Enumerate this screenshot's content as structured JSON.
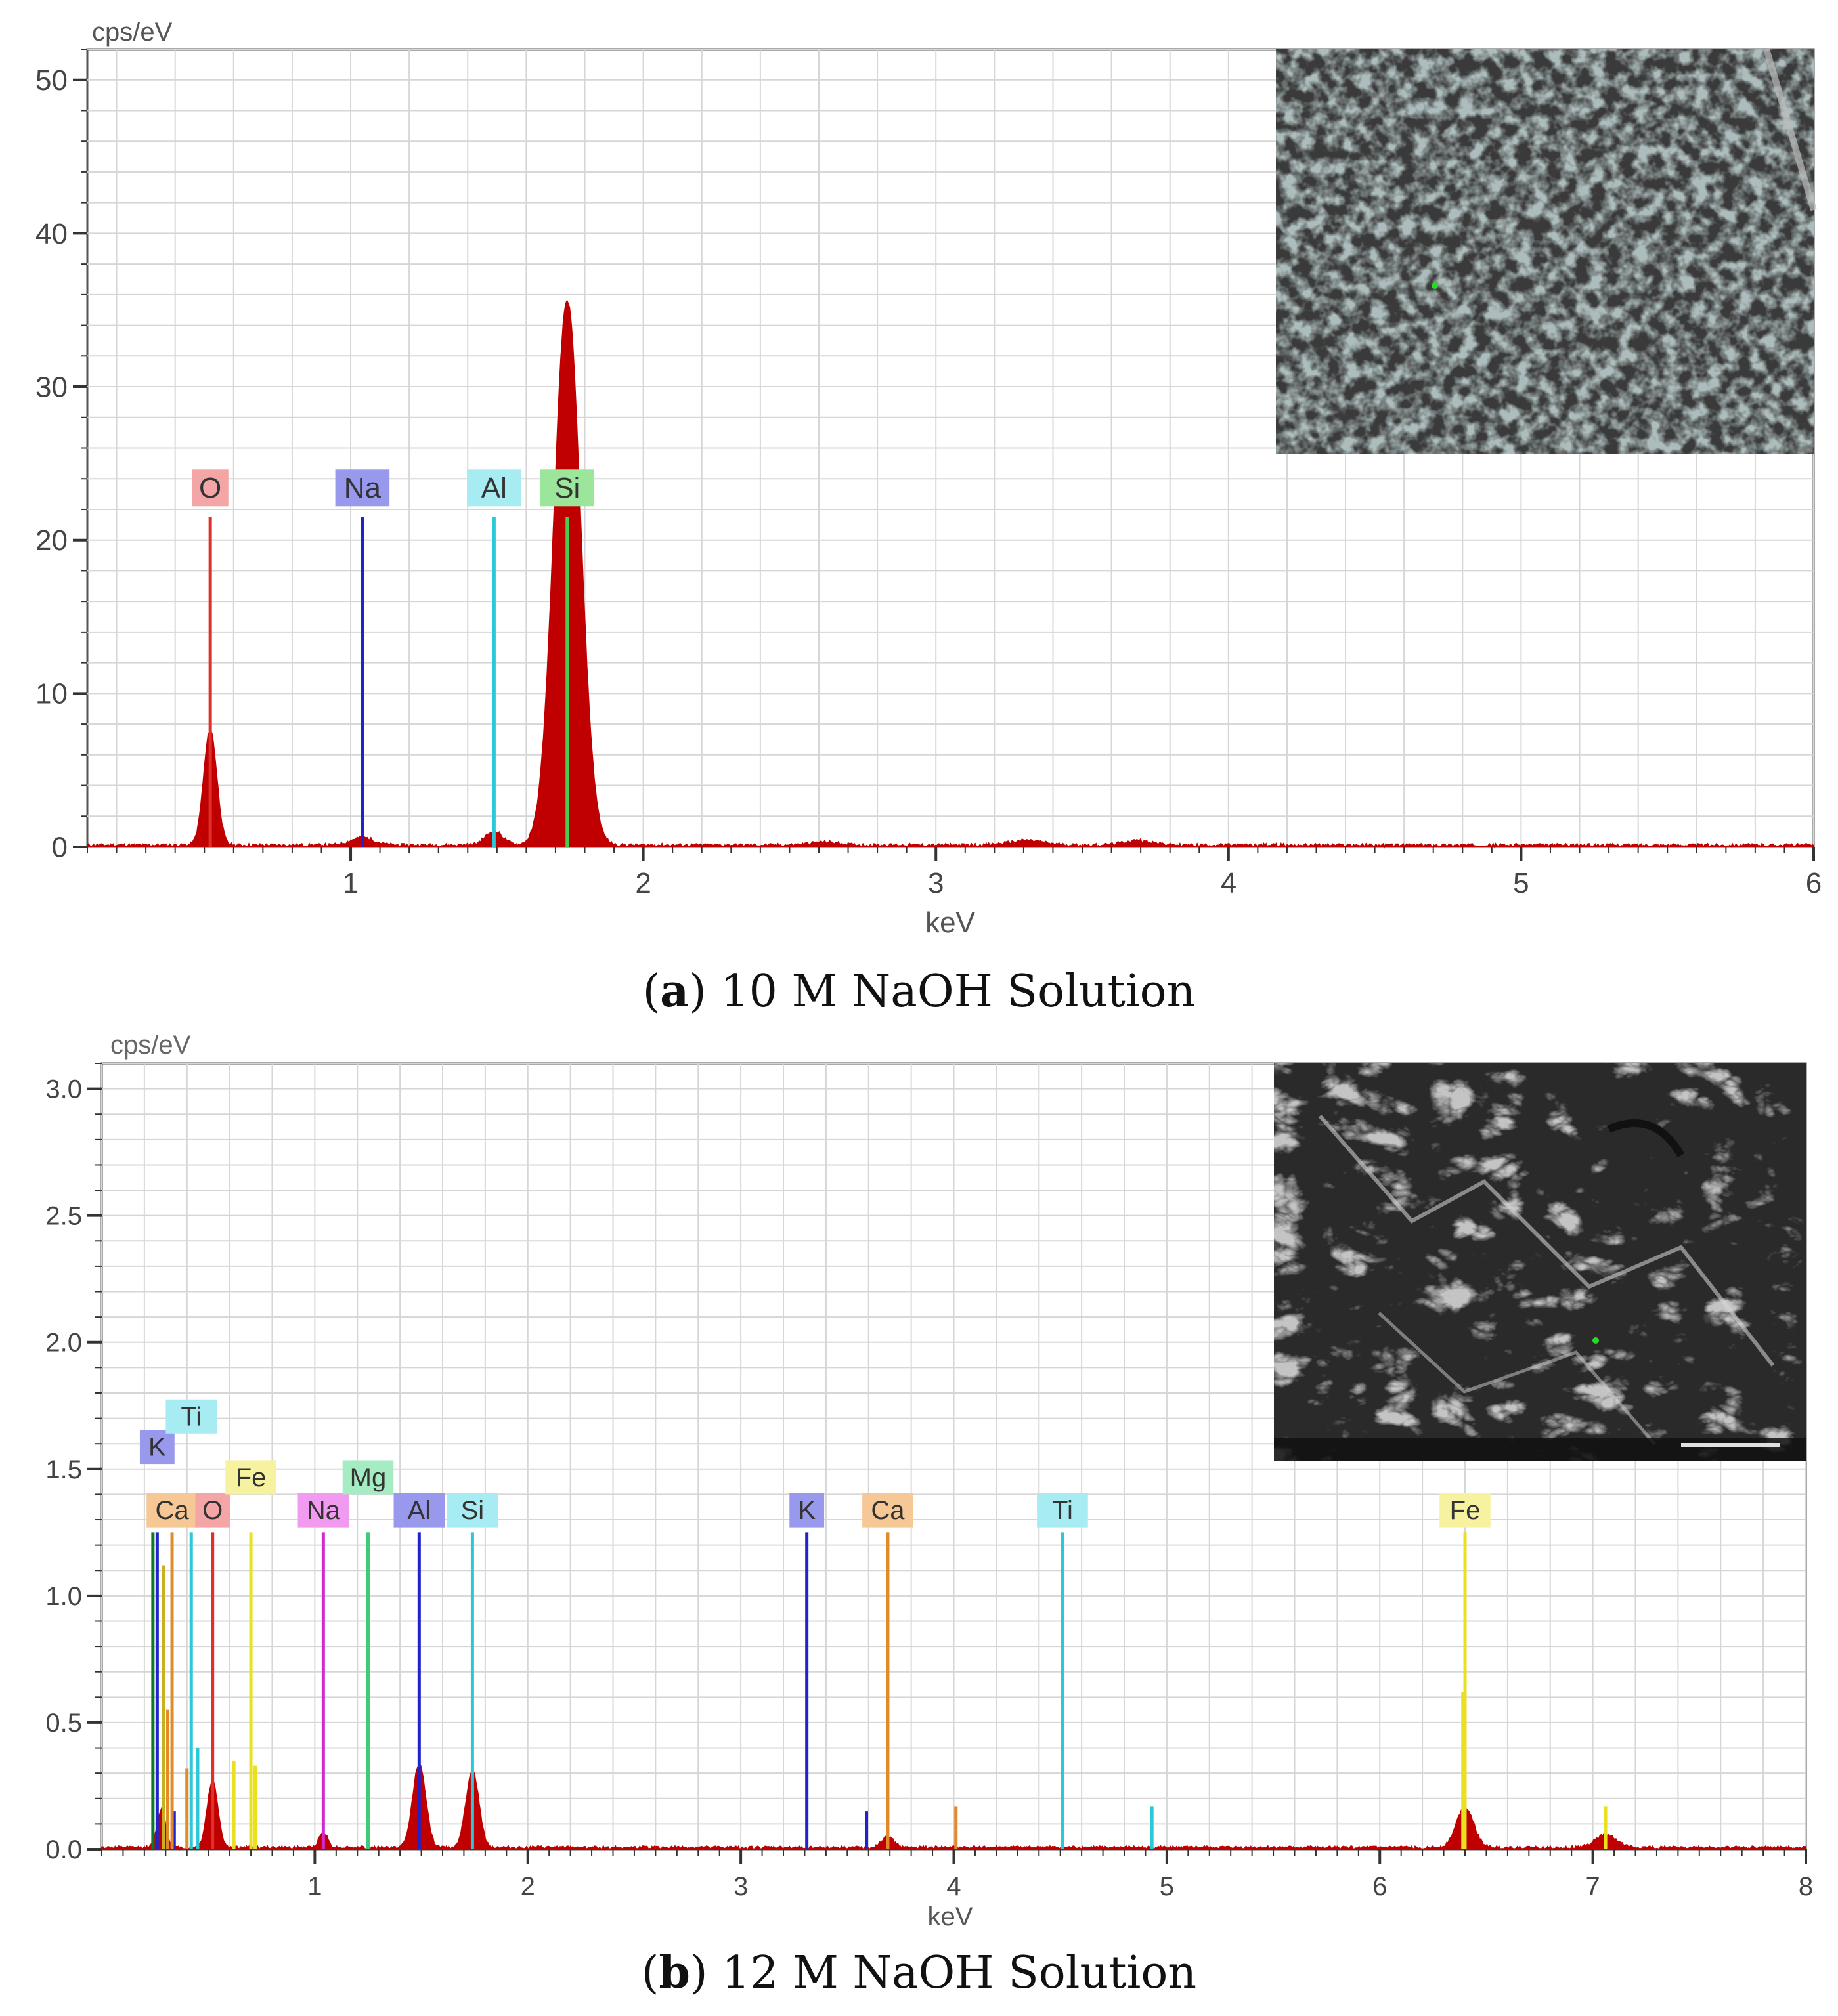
{
  "panels": [
    {
      "caption_letter": "a",
      "caption_text": "10 M NaOH Solution",
      "chart_data": {
        "type": "line",
        "ylabel": "cps/eV",
        "xlabel": "keV",
        "xlim": [
          0.1,
          6
        ],
        "ylim": [
          0,
          52
        ],
        "x_ticks": [
          1,
          2,
          3,
          4,
          5,
          6
        ],
        "y_ticks": [
          0,
          10,
          20,
          30,
          40,
          50
        ],
        "y_tick_labels": [
          "0",
          "10",
          "20",
          "30",
          "40",
          "50"
        ],
        "grid": true,
        "spectrum_color": "#c00000",
        "spectrum_peaks": [
          {
            "x": 0.52,
            "y": 7.5,
            "w": 0.022
          },
          {
            "x": 1.04,
            "y": 0.5,
            "w": 0.04
          },
          {
            "x": 1.49,
            "y": 0.9,
            "w": 0.03
          },
          {
            "x": 1.74,
            "y": 35.5,
            "w": 0.045
          },
          {
            "x": 2.62,
            "y": 0.2,
            "w": 0.05
          },
          {
            "x": 3.31,
            "y": 0.3,
            "w": 0.06
          },
          {
            "x": 3.69,
            "y": 0.3,
            "w": 0.05
          }
        ],
        "element_markers": [
          {
            "label": "O",
            "x": 0.52,
            "line_top": 21.5,
            "label_y": 22.2,
            "color": "#e0302a",
            "bg": "#f4a6a6"
          },
          {
            "label": "Na",
            "x": 1.04,
            "line_top": 21.5,
            "label_y": 22.2,
            "color": "#2222cc",
            "bg": "#9898ec"
          },
          {
            "label": "Al",
            "x": 1.49,
            "line_top": 21.5,
            "label_y": 22.2,
            "color": "#2cc8d8",
            "bg": "#a6ecf2"
          },
          {
            "label": "Si",
            "x": 1.74,
            "line_top": 21.5,
            "label_y": 22.2,
            "color": "#4ccc4c",
            "bg": "#9ce69c"
          }
        ]
      },
      "inset_image": {
        "description_icon": "sem-micrograph-granular",
        "has_scale_bar": false
      }
    },
    {
      "caption_letter": "b",
      "caption_text": "12 M NaOH Solution",
      "chart_data": {
        "type": "line",
        "ylabel": "cps/eV",
        "xlabel": "keV",
        "xlim": [
          0.0,
          8
        ],
        "ylim": [
          0,
          3.1
        ],
        "x_ticks": [
          1,
          2,
          3,
          4,
          5,
          6,
          7,
          8
        ],
        "y_ticks": [
          0,
          0.5,
          1.0,
          1.5,
          2.0,
          2.5,
          3.0
        ],
        "y_tick_labels": [
          "0.0",
          "0.5",
          "1.0",
          "1.5",
          "2.0",
          "2.5",
          "3.0"
        ],
        "grid": true,
        "spectrum_color": "#c00000",
        "spectrum_peaks": [
          {
            "x": 0.28,
            "y": 0.15,
            "w": 0.02
          },
          {
            "x": 0.52,
            "y": 0.26,
            "w": 0.025
          },
          {
            "x": 1.04,
            "y": 0.06,
            "w": 0.02
          },
          {
            "x": 1.49,
            "y": 0.33,
            "w": 0.03
          },
          {
            "x": 1.74,
            "y": 0.3,
            "w": 0.03
          },
          {
            "x": 3.69,
            "y": 0.04,
            "w": 0.03
          },
          {
            "x": 6.4,
            "y": 0.16,
            "w": 0.04
          },
          {
            "x": 7.06,
            "y": 0.05,
            "w": 0.05
          }
        ],
        "element_markers": [
          {
            "label": "K",
            "x": 0.26,
            "line_top": 1.25,
            "label_y": 1.52,
            "color": "#2222cc",
            "bg": "#9898ec"
          },
          {
            "label": "Ti",
            "x": 0.42,
            "line_top": 1.25,
            "label_y": 1.64,
            "color": "#2cc8d8",
            "bg": "#a6ecf2"
          },
          {
            "label": "Ca",
            "x": 0.33,
            "line_top": 1.25,
            "label_y": 1.27,
            "color": "#e08a2a",
            "bg": "#f6c896"
          },
          {
            "label": "O",
            "x": 0.52,
            "line_top": 1.25,
            "label_y": 1.27,
            "color": "#e0302a",
            "bg": "#f4a6a6"
          },
          {
            "label": "Fe",
            "x": 0.7,
            "line_top": 1.25,
            "label_y": 1.4,
            "color": "#e8e020",
            "bg": "#f6f2a0"
          },
          {
            "label": "Na",
            "x": 1.04,
            "line_top": 1.25,
            "label_y": 1.27,
            "color": "#d22ad2",
            "bg": "#f09af0"
          },
          {
            "label": "Mg",
            "x": 1.25,
            "line_top": 1.25,
            "label_y": 1.4,
            "color": "#3ccc78",
            "bg": "#a6ecc2"
          },
          {
            "label": "Al",
            "x": 1.49,
            "line_top": 1.25,
            "label_y": 1.27,
            "color": "#2222cc",
            "bg": "#9898ec"
          },
          {
            "label": "Si",
            "x": 1.74,
            "line_top": 1.25,
            "label_y": 1.27,
            "color": "#2cc8d8",
            "bg": "#a6ecf2"
          },
          {
            "label": "K",
            "x": 3.31,
            "line_top": 1.25,
            "label_y": 1.27,
            "color": "#2222cc",
            "bg": "#9898ec"
          },
          {
            "label": "Ca",
            "x": 3.69,
            "line_top": 1.25,
            "label_y": 1.27,
            "color": "#e08a2a",
            "bg": "#f6c896"
          },
          {
            "label": "Ti",
            "x": 4.51,
            "line_top": 1.25,
            "label_y": 1.27,
            "color": "#2cc8d8",
            "bg": "#a6ecf2"
          },
          {
            "label": "Fe",
            "x": 6.4,
            "line_top": 1.25,
            "label_y": 1.27,
            "color": "#e8e020",
            "bg": "#f6f2a0"
          }
        ],
        "minor_lines": [
          {
            "x": 0.24,
            "top": 1.25,
            "color": "#0a7a2a"
          },
          {
            "x": 0.29,
            "top": 1.12,
            "color": "#c8b020"
          },
          {
            "x": 0.31,
            "top": 0.55,
            "color": "#e08a2a"
          },
          {
            "x": 0.34,
            "top": 0.15,
            "color": "#2222cc"
          },
          {
            "x": 0.4,
            "top": 0.32,
            "color": "#e08a2a"
          },
          {
            "x": 0.45,
            "top": 0.4,
            "color": "#2cc8d8"
          },
          {
            "x": 0.62,
            "top": 0.35,
            "color": "#e8e020"
          },
          {
            "x": 0.72,
            "top": 0.33,
            "color": "#e8e020"
          },
          {
            "x": 3.59,
            "top": 0.15,
            "color": "#2222cc"
          },
          {
            "x": 4.01,
            "top": 0.17,
            "color": "#e08a2a"
          },
          {
            "x": 4.93,
            "top": 0.17,
            "color": "#2cc8d8"
          },
          {
            "x": 6.39,
            "top": 0.62,
            "color": "#e8e020"
          },
          {
            "x": 7.06,
            "top": 0.17,
            "color": "#e8e020"
          }
        ]
      },
      "inset_image": {
        "description_icon": "sem-micrograph-fractured",
        "has_scale_bar": true
      }
    }
  ]
}
